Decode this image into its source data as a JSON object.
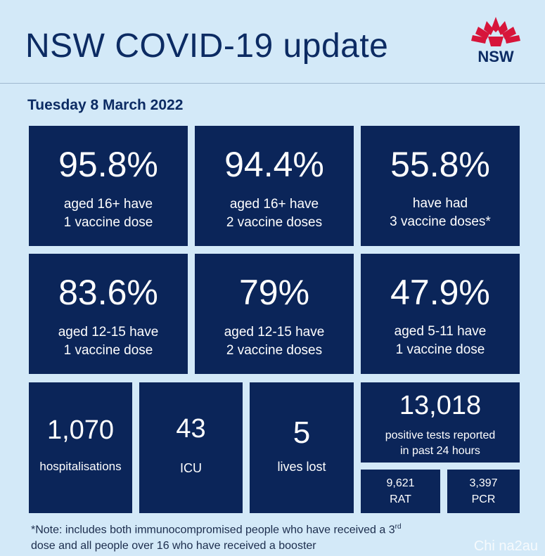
{
  "header": {
    "title": "NSW COVID-19 update",
    "logo_text": "NSW"
  },
  "date": "Tuesday 8 March 2022",
  "row1": [
    {
      "value": "95.8%",
      "line1": "aged 16+ have",
      "line2": "1 vaccine dose"
    },
    {
      "value": "94.4%",
      "line1": "aged 16+ have",
      "line2": "2 vaccine doses"
    },
    {
      "value": "55.8%",
      "line1": "have had",
      "line2": "3 vaccine doses*"
    }
  ],
  "row2": [
    {
      "value": "83.6%",
      "line1": "aged 12-15 have",
      "line2": "1 vaccine dose"
    },
    {
      "value": "79%",
      "line1": "aged 12-15 have",
      "line2": "2 vaccine doses"
    },
    {
      "value": "47.9%",
      "line1": "aged 5-11 have",
      "line2": "1 vaccine dose"
    }
  ],
  "row3": {
    "hospital": {
      "value": "1,070",
      "label": "hospitalisations"
    },
    "icu": {
      "value": "43",
      "label": "ICU"
    },
    "lost": {
      "value": "5",
      "label": "lives lost"
    },
    "tests": {
      "value": "13,018",
      "line1": "positive tests reported",
      "line2": "in past 24 hours"
    },
    "rat": {
      "value": "9,621",
      "label": "RAT"
    },
    "pcr": {
      "value": "3,397",
      "label": "PCR"
    }
  },
  "note": {
    "part1": "*Note: includes both immunocompromised  people who have received a 3",
    "sup": "rd",
    "part2": "dose and all people over 16 who have received a booster"
  },
  "watermark": "Chi na2au",
  "colors": {
    "background": "#d3e9f8",
    "tile": "#0b2559",
    "heading": "#0c2b63",
    "logo_red": "#d7153a"
  }
}
